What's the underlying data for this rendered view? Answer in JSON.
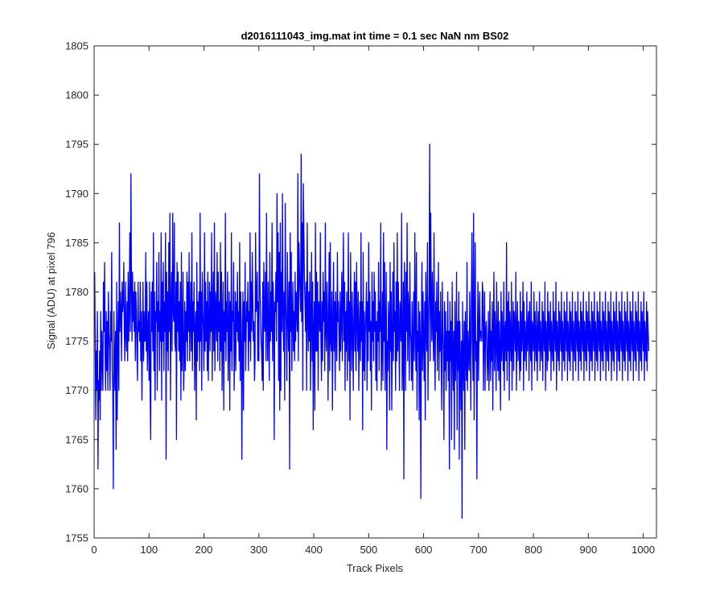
{
  "chart_data": {
    "type": "line",
    "title": "d2016111043_img.mat int time = 0.1 sec  NaN nm BS02",
    "xlabel": "Track Pixels",
    "ylabel": "Signal (ADU) at pixel 796",
    "xlim": [
      0,
      1024
    ],
    "ylim": [
      1755,
      1805
    ],
    "xticks": [
      0,
      100,
      200,
      300,
      400,
      500,
      600,
      700,
      800,
      900,
      1000
    ],
    "yticks": [
      1755,
      1760,
      1765,
      1770,
      1775,
      1780,
      1785,
      1790,
      1795,
      1800,
      1805
    ],
    "grid": false,
    "series": [
      {
        "name": "",
        "color": "#0000ff",
        "x_start": 1,
        "x_step": 1,
        "points_note": "",
        "values": [
          1782,
          1775,
          1767,
          1774,
          1770,
          1778,
          1762,
          1771,
          1769,
          1774,
          1767,
          1778,
          1770,
          1776,
          1773,
          1770,
          1781,
          1776,
          1783,
          1774,
          1770,
          1778,
          1772,
          1777,
          1770,
          1780,
          1776,
          1774,
          1770,
          1778,
          1775,
          1784,
          1772,
          1770,
          1760,
          1778,
          1773,
          1770,
          1776,
          1764,
          1781,
          1767,
          1775,
          1779,
          1770,
          1787,
          1776,
          1780,
          1778,
          1773,
          1781,
          1778,
          1779,
          1783,
          1776,
          1773,
          1781,
          1776,
          1774,
          1779,
          1773,
          1782,
          1775,
          1778,
          1786,
          1776,
          1792,
          1781,
          1775,
          1782,
          1777,
          1780,
          1776,
          1781,
          1773,
          1780,
          1778,
          1774,
          1771,
          1781,
          1776,
          1777,
          1775,
          1781,
          1773,
          1778,
          1769,
          1775,
          1781,
          1773,
          1778,
          1775,
          1775,
          1784,
          1774,
          1781,
          1772,
          1776,
          1778,
          1771,
          1781,
          1770,
          1765,
          1780,
          1776,
          1781,
          1774,
          1786,
          1772,
          1780,
          1769,
          1778,
          1777,
          1783,
          1770,
          1779,
          1776,
          1784,
          1772,
          1778,
          1775,
          1786,
          1769,
          1781,
          1775,
          1783,
          1772,
          1779,
          1776,
          1786,
          1763,
          1782,
          1774,
          1780,
          1772,
          1785,
          1776,
          1788,
          1769,
          1778,
          1782,
          1774,
          1788,
          1778,
          1777,
          1787,
          1775,
          1774,
          1781,
          1765,
          1783,
          1776,
          1782,
          1774,
          1779,
          1773,
          1781,
          1769,
          1784,
          1772,
          1775,
          1782,
          1770,
          1773,
          1779,
          1772,
          1778,
          1775,
          1782,
          1773,
          1781,
          1776,
          1784,
          1773,
          1777,
          1781,
          1774,
          1786,
          1772,
          1779,
          1776,
          1781,
          1770,
          1776,
          1778,
          1767,
          1783,
          1773,
          1779,
          1775,
          1780,
          1772,
          1788,
          1775,
          1780,
          1770,
          1782,
          1778,
          1776,
          1772,
          1786,
          1774,
          1781,
          1775,
          1779,
          1772,
          1782,
          1771,
          1777,
          1781,
          1774,
          1780,
          1776,
          1786,
          1771,
          1778,
          1782,
          1774,
          1787,
          1772,
          1780,
          1778,
          1775,
          1784,
          1773,
          1782,
          1776,
          1779,
          1772,
          1785,
          1774,
          1782,
          1770,
          1777,
          1781,
          1768,
          1778,
          1775,
          1788,
          1773,
          1779,
          1776,
          1782,
          1771,
          1776,
          1780,
          1768,
          1779,
          1774,
          1786,
          1772,
          1778,
          1777,
          1783,
          1770,
          1774,
          1780,
          1772,
          1779,
          1776,
          1782,
          1775,
          1778,
          1773,
          1785,
          1771,
          1780,
          1777,
          1763,
          1774,
          1780,
          1768,
          1779,
          1775,
          1783,
          1772,
          1776,
          1779,
          1777,
          1781,
          1772,
          1778,
          1775,
          1786,
          1773,
          1781,
          1776,
          1784,
          1779,
          1775,
          1777,
          1771,
          1773,
          1786,
          1778,
          1779,
          1782,
          1773,
          1779,
          1773,
          1792,
          1781,
          1778,
          1775,
          1774,
          1771,
          1781,
          1770,
          1783,
          1777,
          1776,
          1782,
          1773,
          1788,
          1777,
          1773,
          1781,
          1776,
          1771,
          1784,
          1775,
          1780,
          1776,
          1787,
          1773,
          1781,
          1778,
          1765,
          1779,
          1778,
          1782,
          1775,
          1790,
          1779,
          1786,
          1771,
          1784,
          1768,
          1787,
          1770,
          1782,
          1776,
          1790,
          1778,
          1774,
          1780,
          1769,
          1789,
          1779,
          1776,
          1771,
          1784,
          1778,
          1774,
          1781,
          1762,
          1786,
          1776,
          1784,
          1772,
          1777,
          1781,
          1774,
          1778,
          1773,
          1782,
          1775,
          1780,
          1778,
          1776,
          1792,
          1773,
          1785,
          1782,
          1780,
          1778,
          1794,
          1777,
          1787,
          1770,
          1791,
          1786,
          1781,
          1779,
          1776,
          1781,
          1770,
          1787,
          1778,
          1774,
          1780,
          1775,
          1782,
          1770,
          1777,
          1784,
          1773,
          1781,
          1766,
          1776,
          1779,
          1768,
          1787,
          1774,
          1782,
          1774,
          1781,
          1770,
          1779,
          1778,
          1776,
          1786,
          1775,
          1771,
          1779,
          1773,
          1782,
          1777,
          1780,
          1772,
          1787,
          1776,
          1774,
          1781,
          1778,
          1769,
          1777,
          1784,
          1772,
          1785,
          1775,
          1774,
          1780,
          1768,
          1776,
          1783,
          1774,
          1779,
          1770,
          1780,
          1776,
          1773,
          1784,
          1777,
          1779,
          1775,
          1772,
          1780,
          1774,
          1777,
          1782,
          1773,
          1779,
          1786,
          1775,
          1781,
          1770,
          1778,
          1774,
          1780,
          1771,
          1776,
          1786,
          1773,
          1779,
          1767,
          1784,
          1777,
          1772,
          1780,
          1776,
          1770,
          1778,
          1782,
          1774,
          1781,
          1772,
          1783,
          1777,
          1774,
          1780,
          1770,
          1776,
          1779,
          1773,
          1786,
          1775,
          1779,
          1766,
          1784,
          1772,
          1778,
          1771,
          1776,
          1778,
          1781,
          1770,
          1779,
          1773,
          1785,
          1776,
          1780,
          1772,
          1777,
          1768,
          1782,
          1775,
          1779,
          1773,
          1782,
          1776,
          1780,
          1771,
          1777,
          1770,
          1778,
          1775,
          1783,
          1772,
          1779,
          1776,
          1787,
          1770,
          1774,
          1780,
          1771,
          1786,
          1775,
          1783,
          1770,
          1776,
          1782,
          1764,
          1775,
          1772,
          1779,
          1777,
          1768,
          1783,
          1774,
          1780,
          1768,
          1775,
          1782,
          1773,
          1785,
          1776,
          1778,
          1770,
          1781,
          1773,
          1786,
          1774,
          1781,
          1776,
          1770,
          1779,
          1777,
          1775,
          1788,
          1770,
          1773,
          1781,
          1761,
          1783,
          1778,
          1770,
          1782,
          1776,
          1787,
          1773,
          1780,
          1778,
          1771,
          1783,
          1776,
          1775,
          1771,
          1779,
          1770,
          1775,
          1780,
          1773,
          1786,
          1777,
          1772,
          1784,
          1768,
          1776,
          1774,
          1779,
          1767,
          1778,
          1775,
          1759,
          1777,
          1783,
          1772,
          1780,
          1775,
          1771,
          1779,
          1767,
          1782,
          1776,
          1774,
          1785,
          1769,
          1777,
          1780,
          1795,
          1773,
          1788,
          1779,
          1775,
          1782,
          1777,
          1773,
          1786,
          1775,
          1770,
          1779,
          1776,
          1781,
          1772,
          1776,
          1783,
          1771,
          1778,
          1774,
          1780,
          1773,
          1768,
          1781,
          1776,
          1774,
          1765,
          1779,
          1772,
          1778,
          1770,
          1776,
          1773,
          1780,
          1771,
          1776,
          1762,
          1779,
          1773,
          1777,
          1765,
          1781,
          1774,
          1770,
          1776,
          1764,
          1779,
          1771,
          1774,
          1782,
          1766,
          1777,
          1772,
          1780,
          1763,
          1777,
          1773,
          1768,
          1775,
          1757,
          1779,
          1773,
          1770,
          1777,
          1764,
          1778,
          1774,
          1771,
          1783,
          1770,
          1776,
          1773,
          1772,
          1780,
          1775,
          1768,
          1779,
          1786,
          1775,
          1771,
          1788,
          1767,
          1776,
          1785,
          1773,
          1775,
          1761,
          1776,
          1781,
          1771,
          1776,
          1780,
          1775,
          1776,
          1776,
          1775,
          1781,
          1780,
          1770,
          1776,
          1780,
          1770,
          1776,
          1777,
          1775,
          1771,
          1773,
          1778,
          1770,
          1775,
          1780,
          1771,
          1776,
          1773,
          1779,
          1768,
          1776,
          1782,
          1772,
          1778,
          1776,
          1770,
          1781,
          1775,
          1772,
          1779,
          1771,
          1777,
          1774,
          1768,
          1780,
          1773,
          1778,
          1775,
          1772,
          1781,
          1770,
          1776,
          1777,
          1773,
          1785,
          1771,
          1779,
          1774,
          1780,
          1769,
          1778,
          1776,
          1773,
          1781,
          1770,
          1775,
          1779,
          1772,
          1778,
          1776,
          1774,
          1782,
          1770,
          1776,
          1779,
          1773,
          1777,
          1775,
          1771,
          1780,
          1772,
          1778,
          1774,
          1776,
          1781,
          1770,
          1779,
          1773,
          1777,
          1775,
          1772,
          1780,
          1774,
          1776,
          1778,
          1771,
          1779,
          1775,
          1773,
          1781,
          1770,
          1777,
          1776,
          1774,
          1780,
          1772,
          1778,
          1775,
          1773,
          1779,
          1771,
          1776,
          1778,
          1774,
          1780,
          1772,
          1777,
          1775,
          1773,
          1779,
          1771,
          1778,
          1776,
          1774,
          1781,
          1770,
          1777,
          1775,
          1772,
          1780,
          1773,
          1778,
          1776,
          1774,
          1779,
          1771,
          1777,
          1775,
          1773,
          1780,
          1772,
          1778,
          1776,
          1774,
          1781,
          1770,
          1777,
          1775,
          1773,
          1779,
          1772,
          1778,
          1776,
          1774,
          1780,
          1771,
          1777,
          1775,
          1773,
          1779,
          1772,
          1778,
          1776,
          1774,
          1780,
          1771,
          1777,
          1775,
          1773,
          1779,
          1772,
          1778,
          1776,
          1774,
          1780,
          1771,
          1777,
          1775,
          1773,
          1779,
          1772,
          1778,
          1776,
          1774,
          1780,
          1771,
          1777,
          1775,
          1773,
          1779,
          1772,
          1778,
          1776,
          1774,
          1780,
          1771,
          1777,
          1775,
          1773,
          1779,
          1772,
          1778,
          1776,
          1774,
          1780,
          1771,
          1777,
          1775,
          1773,
          1779,
          1772,
          1778,
          1776,
          1774,
          1780,
          1771,
          1777,
          1775,
          1773,
          1779,
          1772,
          1778,
          1776,
          1774,
          1780,
          1771,
          1777,
          1775,
          1773,
          1779,
          1772,
          1778,
          1776,
          1774,
          1780,
          1771,
          1777,
          1775,
          1773,
          1779,
          1772,
          1778,
          1776,
          1774,
          1780,
          1771,
          1777,
          1775,
          1773,
          1779,
          1772,
          1778,
          1776,
          1774,
          1780,
          1771,
          1777,
          1775,
          1773,
          1779,
          1772,
          1778,
          1776,
          1774,
          1780,
          1771,
          1777,
          1775,
          1773,
          1779,
          1772,
          1778,
          1776,
          1774,
          1780,
          1771,
          1777,
          1775,
          1773,
          1779,
          1772,
          1778,
          1776,
          1774,
          1780,
          1771,
          1777,
          1775,
          1773,
          1779,
          1772,
          1778,
          1776,
          1774,
          1780,
          1771,
          1777,
          1775,
          1773,
          1779,
          1772,
          1778,
          1776,
          1774,
          1780,
          1771,
          1777,
          1775,
          1773,
          1779,
          1772,
          1778,
          1776,
          1774
        ]
      }
    ]
  }
}
